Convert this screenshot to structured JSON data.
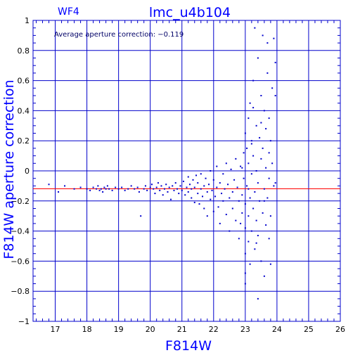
{
  "chart_data": {
    "type": "scatter",
    "title": "lmc_u4b104",
    "corner_label": "WF4",
    "annotation": "Average aperture correction: −0.119",
    "xlabel": "F814W",
    "ylabel": "F814W aperture correction",
    "xlim": [
      16.3,
      26.0
    ],
    "ylim": [
      -1.0,
      1.0
    ],
    "x_ticks": [
      17,
      18,
      19,
      20,
      21,
      22,
      23,
      24,
      25,
      26
    ],
    "y_ticks": [
      1,
      0.8,
      0.6,
      0.4,
      0.2,
      0,
      -0.2,
      -0.4,
      -0.6,
      -0.8,
      -1
    ],
    "y_tick_labels": [
      "1",
      "0.8",
      "0.6",
      "0.4",
      "0.2",
      "0",
      "−0.2",
      "−0.4",
      "−0.6",
      "−0.8",
      "−1"
    ],
    "grid": true,
    "reference_line": {
      "y": -0.119,
      "color": "#ff0000"
    },
    "point_color": "#0000cc",
    "axis_color": "#0000cc",
    "points": [
      [
        16.8,
        -0.09
      ],
      [
        17.1,
        -0.14
      ],
      [
        17.3,
        -0.1
      ],
      [
        17.6,
        -0.12
      ],
      [
        17.8,
        -0.11
      ],
      [
        18.0,
        -0.12
      ],
      [
        18.1,
        -0.13
      ],
      [
        18.2,
        -0.11
      ],
      [
        18.3,
        -0.12
      ],
      [
        18.35,
        -0.1
      ],
      [
        18.4,
        -0.13
      ],
      [
        18.45,
        -0.12
      ],
      [
        18.5,
        -0.14
      ],
      [
        18.55,
        -0.11
      ],
      [
        18.6,
        -0.12
      ],
      [
        18.65,
        -0.1
      ],
      [
        18.7,
        -0.12
      ],
      [
        18.8,
        -0.13
      ],
      [
        18.9,
        -0.11
      ],
      [
        19.0,
        -0.12
      ],
      [
        19.1,
        -0.11
      ],
      [
        19.2,
        -0.13
      ],
      [
        19.3,
        -0.12
      ],
      [
        19.4,
        -0.1
      ],
      [
        19.5,
        -0.12
      ],
      [
        19.6,
        -0.11
      ],
      [
        19.65,
        -0.14
      ],
      [
        19.7,
        -0.3
      ],
      [
        19.8,
        -0.12
      ],
      [
        19.85,
        -0.1
      ],
      [
        19.9,
        -0.13
      ],
      [
        20.0,
        -0.11
      ],
      [
        20.05,
        -0.09
      ],
      [
        20.1,
        -0.12
      ],
      [
        20.15,
        -0.15
      ],
      [
        20.2,
        -0.11
      ],
      [
        20.25,
        -0.08
      ],
      [
        20.3,
        -0.13
      ],
      [
        20.35,
        -0.1
      ],
      [
        20.4,
        -0.16
      ],
      [
        20.45,
        -0.12
      ],
      [
        20.5,
        -0.09
      ],
      [
        20.55,
        -0.14
      ],
      [
        20.6,
        -0.11
      ],
      [
        20.65,
        -0.19
      ],
      [
        20.7,
        -0.1
      ],
      [
        20.75,
        -0.13
      ],
      [
        20.8,
        -0.08
      ],
      [
        20.85,
        -0.12
      ],
      [
        20.9,
        -0.15
      ],
      [
        20.95,
        -0.1
      ],
      [
        21.0,
        -0.13
      ],
      [
        21.05,
        -0.07
      ],
      [
        21.1,
        -0.16
      ],
      [
        21.15,
        -0.11
      ],
      [
        21.2,
        -0.04
      ],
      [
        21.2,
        -0.14
      ],
      [
        21.25,
        -0.09
      ],
      [
        21.3,
        -0.18
      ],
      [
        21.3,
        -0.12
      ],
      [
        21.35,
        -0.06
      ],
      [
        21.4,
        -0.21
      ],
      [
        21.4,
        -0.11
      ],
      [
        21.45,
        -0.03
      ],
      [
        21.5,
        -0.15
      ],
      [
        21.5,
        -0.08
      ],
      [
        21.55,
        -0.22
      ],
      [
        21.6,
        -0.12
      ],
      [
        21.6,
        -0.02
      ],
      [
        21.65,
        -0.17
      ],
      [
        21.7,
        -0.1
      ],
      [
        21.7,
        -0.25
      ],
      [
        21.75,
        -0.05
      ],
      [
        21.8,
        -0.14
      ],
      [
        21.8,
        -0.3
      ],
      [
        21.85,
        -0.09
      ],
      [
        21.9,
        0.0
      ],
      [
        21.9,
        -0.19
      ],
      [
        21.95,
        -0.13
      ],
      [
        22.0,
        -0.27
      ],
      [
        22.0,
        -0.06
      ],
      [
        22.05,
        -0.17
      ],
      [
        22.1,
        0.03
      ],
      [
        22.1,
        -0.11
      ],
      [
        22.15,
        -0.24
      ],
      [
        22.2,
        -0.08
      ],
      [
        22.2,
        -0.35
      ],
      [
        22.25,
        -0.15
      ],
      [
        22.3,
        -0.02
      ],
      [
        22.3,
        -0.2
      ],
      [
        22.35,
        -0.12
      ],
      [
        22.4,
        0.05
      ],
      [
        22.4,
        -0.29
      ],
      [
        22.45,
        -0.09
      ],
      [
        22.5,
        -0.18
      ],
      [
        22.5,
        -0.4
      ],
      [
        22.55,
        0.01
      ],
      [
        22.6,
        -0.14
      ],
      [
        22.6,
        -0.25
      ],
      [
        22.65,
        -0.06
      ],
      [
        22.7,
        0.08
      ],
      [
        22.7,
        -0.33
      ],
      [
        22.75,
        -0.11
      ],
      [
        22.8,
        -0.2
      ],
      [
        22.8,
        -0.45
      ],
      [
        22.85,
        0.03
      ],
      [
        22.9,
        -0.16
      ],
      [
        22.9,
        -0.28
      ],
      [
        22.95,
        0.12
      ],
      [
        22.95,
        -0.05
      ],
      [
        23.0,
        -0.22
      ],
      [
        23.0,
        -0.38
      ],
      [
        23.0,
        0.25
      ],
      [
        23.0,
        -0.55
      ],
      [
        23.0,
        -0.75
      ],
      [
        23.05,
        0.15
      ],
      [
        23.05,
        -0.1
      ],
      [
        23.1,
        0.35
      ],
      [
        23.1,
        -0.3
      ],
      [
        23.1,
        -0.47
      ],
      [
        23.1,
        0.05
      ],
      [
        23.15,
        -0.18
      ],
      [
        23.15,
        0.45
      ],
      [
        23.15,
        -0.62
      ],
      [
        23.2,
        0.2
      ],
      [
        23.2,
        -0.02
      ],
      [
        23.2,
        -0.4
      ],
      [
        23.25,
        0.6
      ],
      [
        23.25,
        -0.25
      ],
      [
        23.25,
        0.1
      ],
      [
        23.3,
        0.95
      ],
      [
        23.3,
        -0.14
      ],
      [
        23.3,
        -0.52
      ],
      [
        23.35,
        0.3
      ],
      [
        23.35,
        -0.33
      ],
      [
        23.35,
        0.0
      ],
      [
        23.4,
        0.75
      ],
      [
        23.4,
        -0.08
      ],
      [
        23.4,
        -0.43
      ],
      [
        23.45,
        0.22
      ],
      [
        23.45,
        -0.2
      ],
      [
        23.5,
        0.5
      ],
      [
        23.5,
        -0.6
      ],
      [
        23.5,
        0.08
      ],
      [
        23.55,
        0.9
      ],
      [
        23.55,
        -0.28
      ],
      [
        23.55,
        0.15
      ],
      [
        23.6,
        -0.12
      ],
      [
        23.6,
        0.4
      ],
      [
        23.6,
        -0.7
      ],
      [
        23.65,
        0.02
      ],
      [
        23.65,
        -0.36
      ],
      [
        23.65,
        0.28
      ],
      [
        23.7,
        0.85
      ],
      [
        23.7,
        -0.18
      ],
      [
        23.7,
        0.65
      ],
      [
        23.75,
        -0.45
      ],
      [
        23.75,
        0.12
      ],
      [
        23.75,
        -0.05
      ],
      [
        23.8,
        0.2
      ],
      [
        23.8,
        -0.3
      ],
      [
        23.8,
        -0.62
      ],
      [
        23.85,
        0.55
      ],
      [
        23.85,
        0.05
      ],
      [
        23.9,
        0.88
      ],
      [
        23.9,
        -0.1
      ],
      [
        23.95,
        0.72
      ],
      [
        23.95,
        -0.08
      ],
      [
        23.95,
        0.5
      ],
      [
        23.2,
        0.18
      ],
      [
        23.4,
        -0.85
      ],
      [
        23.0,
        -0.68
      ],
      [
        22.9,
        0.02
      ],
      [
        23.1,
        -0.12
      ],
      [
        23.6,
        -0.2
      ],
      [
        23.75,
        0.35
      ],
      [
        22.85,
        -0.35
      ],
      [
        23.5,
        0.32
      ],
      [
        23.35,
        -0.48
      ],
      [
        23.25,
        0.42
      ]
    ]
  }
}
